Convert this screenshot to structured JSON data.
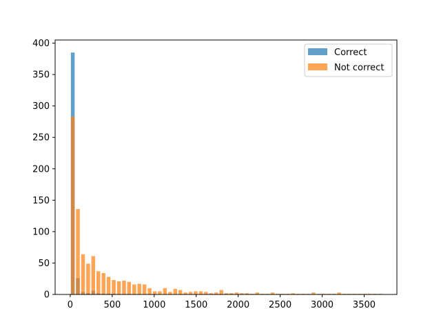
{
  "chart_data": {
    "type": "bar",
    "title": "",
    "xlabel": "",
    "ylabel": "",
    "xlim": [
      -180,
      3890
    ],
    "ylim": [
      0,
      405
    ],
    "x_ticks": [
      0,
      500,
      1000,
      1500,
      2000,
      2500,
      3000,
      3500
    ],
    "y_ticks": [
      0,
      50,
      100,
      150,
      200,
      250,
      300,
      350,
      400
    ],
    "bin_width": 61,
    "bar_width": 45,
    "grid": false,
    "legend_position": "top-right",
    "series": [
      {
        "name": "Correct",
        "color": "#1f77b4",
        "bins": [
          {
            "x": 30,
            "y": 385
          },
          {
            "x": 91,
            "y": 26
          },
          {
            "x": 152,
            "y": 4
          },
          {
            "x": 213,
            "y": 2
          },
          {
            "x": 274,
            "y": 6
          },
          {
            "x": 335,
            "y": 2
          },
          {
            "x": 396,
            "y": 1
          },
          {
            "x": 457,
            "y": 1
          },
          {
            "x": 518,
            "y": 1
          }
        ]
      },
      {
        "name": "Not correct",
        "color": "#ff7f0e",
        "bins": [
          {
            "x": 30,
            "y": 283
          },
          {
            "x": 91,
            "y": 136
          },
          {
            "x": 152,
            "y": 64
          },
          {
            "x": 213,
            "y": 49
          },
          {
            "x": 274,
            "y": 61
          },
          {
            "x": 335,
            "y": 37
          },
          {
            "x": 396,
            "y": 34
          },
          {
            "x": 457,
            "y": 28
          },
          {
            "x": 518,
            "y": 23
          },
          {
            "x": 579,
            "y": 21
          },
          {
            "x": 640,
            "y": 22
          },
          {
            "x": 701,
            "y": 20
          },
          {
            "x": 762,
            "y": 16
          },
          {
            "x": 823,
            "y": 17
          },
          {
            "x": 884,
            "y": 16
          },
          {
            "x": 945,
            "y": 10
          },
          {
            "x": 1006,
            "y": 5
          },
          {
            "x": 1067,
            "y": 5
          },
          {
            "x": 1128,
            "y": 10
          },
          {
            "x": 1189,
            "y": 4
          },
          {
            "x": 1250,
            "y": 9
          },
          {
            "x": 1311,
            "y": 7
          },
          {
            "x": 1372,
            "y": 3
          },
          {
            "x": 1433,
            "y": 4
          },
          {
            "x": 1494,
            "y": 5
          },
          {
            "x": 1555,
            "y": 5
          },
          {
            "x": 1616,
            "y": 4
          },
          {
            "x": 1677,
            "y": 2
          },
          {
            "x": 1738,
            "y": 3
          },
          {
            "x": 1799,
            "y": 7
          },
          {
            "x": 1860,
            "y": 2
          },
          {
            "x": 1921,
            "y": 2
          },
          {
            "x": 1982,
            "y": 3
          },
          {
            "x": 2043,
            "y": 2
          },
          {
            "x": 2104,
            "y": 2
          },
          {
            "x": 2165,
            "y": 1
          },
          {
            "x": 2226,
            "y": 3
          },
          {
            "x": 2287,
            "y": 1
          },
          {
            "x": 2348,
            "y": 1
          },
          {
            "x": 2409,
            "y": 3
          },
          {
            "x": 2470,
            "y": 1
          },
          {
            "x": 2531,
            "y": 1
          },
          {
            "x": 2592,
            "y": 1
          },
          {
            "x": 2653,
            "y": 2
          },
          {
            "x": 2714,
            "y": 1
          },
          {
            "x": 2775,
            "y": 1
          },
          {
            "x": 2836,
            "y": 1
          },
          {
            "x": 2897,
            "y": 3
          },
          {
            "x": 2958,
            "y": 1
          },
          {
            "x": 3019,
            "y": 1
          },
          {
            "x": 3080,
            "y": 1
          },
          {
            "x": 3141,
            "y": 1
          },
          {
            "x": 3202,
            "y": 3
          },
          {
            "x": 3263,
            "y": 1
          },
          {
            "x": 3324,
            "y": 1
          },
          {
            "x": 3385,
            "y": 1
          },
          {
            "x": 3446,
            "y": 1
          },
          {
            "x": 3507,
            "y": 1
          },
          {
            "x": 3568,
            "y": 1
          },
          {
            "x": 3629,
            "y": 1
          },
          {
            "x": 3690,
            "y": 1
          }
        ]
      }
    ]
  }
}
